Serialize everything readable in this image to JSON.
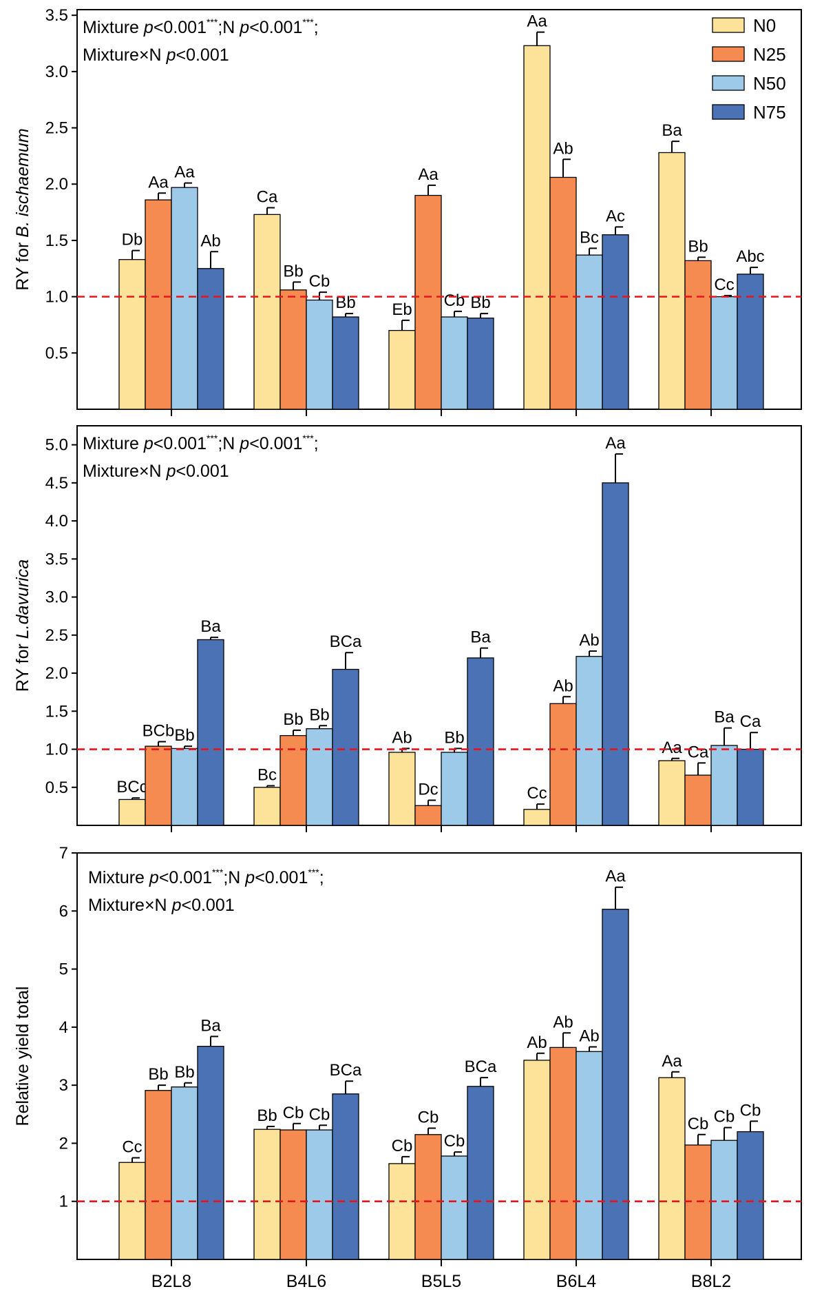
{
  "legend": [
    {
      "name": "N0",
      "color": "#fde39a"
    },
    {
      "name": "N25",
      "color": "#f58b51"
    },
    {
      "name": "N50",
      "color": "#9ecae9"
    },
    {
      "name": "N75",
      "color": "#4a72b4"
    }
  ],
  "chart_data": [
    {
      "type": "bar",
      "ylabel_prefix": "RY for ",
      "ylabel_species": "B. ischaemum",
      "stats": {
        "line1_mixture": "Mixture ",
        "line1_p": "p",
        "line1_val": "<0.001",
        "line1_sup": "***",
        "line1_sep": ";N ",
        "line1_p2": "p",
        "line1_val2": "<0.001",
        "line1_sup2": "***",
        "line1_end": ";",
        "line2_label": "Mixture×N  ",
        "line2_p": "p",
        "line2_val": "<0.001"
      },
      "categories": [
        "B2L8",
        "B4L6",
        "B5L5",
        "B6L4",
        "B8L2"
      ],
      "series": [
        {
          "name": "N0",
          "values": [
            1.33,
            1.73,
            0.7,
            3.23,
            2.28
          ],
          "errors": [
            0.08,
            0.06,
            0.09,
            0.12,
            0.1
          ],
          "letters": [
            "Db",
            "Ca",
            "Eb",
            "Aa",
            "Ba"
          ]
        },
        {
          "name": "N25",
          "values": [
            1.86,
            1.06,
            1.9,
            2.06,
            1.32
          ],
          "errors": [
            0.06,
            0.07,
            0.09,
            0.16,
            0.03
          ],
          "letters": [
            "Aa",
            "Bb",
            "Aa",
            "Ab",
            "Bb"
          ]
        },
        {
          "name": "N50",
          "values": [
            1.97,
            0.97,
            0.82,
            1.37,
            1.0
          ],
          "errors": [
            0.04,
            0.07,
            0.05,
            0.06,
            0.01
          ],
          "letters": [
            "Aa",
            "Cb",
            "Cb",
            "Bc",
            "Cc"
          ]
        },
        {
          "name": "N75",
          "values": [
            1.25,
            0.82,
            0.81,
            1.55,
            1.2
          ],
          "errors": [
            0.15,
            0.03,
            0.04,
            0.07,
            0.06
          ],
          "letters": [
            "Ab",
            "Bb",
            "Bb",
            "Ac",
            "Abc"
          ]
        }
      ],
      "reference_line": 1.0,
      "ylim": [
        0,
        3.55
      ],
      "yticks": [
        0.5,
        1.0,
        1.5,
        2.0,
        2.5,
        3.0,
        3.5
      ],
      "ytick_labels": [
        "0.5",
        "1.0",
        "1.5",
        "2.0",
        "2.5",
        "3.0",
        "3.5"
      ]
    },
    {
      "type": "bar",
      "ylabel_prefix": "RY for ",
      "ylabel_species": "L.davurica",
      "stats": {
        "line1_mixture": "Mixture ",
        "line1_p": "p",
        "line1_val": "<0.001",
        "line1_sup": "***",
        "line1_sep": ";N ",
        "line1_p2": "p",
        "line1_val2": "<0.001",
        "line1_sup2": "***",
        "line1_end": ";",
        "line2_label": "Mixture×N  ",
        "line2_p": "p",
        "line2_val": "<0.001"
      },
      "categories": [
        "B2L8",
        "B4L6",
        "B5L5",
        "B6L4",
        "B8L2"
      ],
      "series": [
        {
          "name": "N0",
          "values": [
            0.34,
            0.5,
            0.96,
            0.21,
            0.85
          ],
          "errors": [
            0.02,
            0.02,
            0.05,
            0.07,
            0.03
          ],
          "letters": [
            "BCc",
            "Bc",
            "Ab",
            "Cc",
            "Aa"
          ]
        },
        {
          "name": "N25",
          "values": [
            1.04,
            1.18,
            0.26,
            1.6,
            0.66
          ],
          "errors": [
            0.06,
            0.07,
            0.07,
            0.09,
            0.16
          ],
          "letters": [
            "BCb",
            "Bb",
            "Dc",
            "Ab",
            "Ca"
          ]
        },
        {
          "name": "N50",
          "values": [
            1.01,
            1.27,
            0.96,
            2.22,
            1.05
          ],
          "errors": [
            0.03,
            0.04,
            0.05,
            0.07,
            0.23
          ],
          "letters": [
            "Bb",
            "Bb",
            "Bb",
            "Ab",
            "Ba"
          ]
        },
        {
          "name": "N75",
          "values": [
            2.44,
            2.05,
            2.2,
            4.5,
            1.0
          ],
          "errors": [
            0.03,
            0.22,
            0.13,
            0.38,
            0.22
          ],
          "letters": [
            "Ba",
            "BCa",
            "Ba",
            "Aa",
            "Ca"
          ]
        }
      ],
      "reference_line": 1.0,
      "ylim": [
        0,
        5.25
      ],
      "yticks": [
        0.5,
        1.0,
        1.5,
        2.0,
        2.5,
        3.0,
        3.5,
        4.0,
        4.5,
        5.0
      ],
      "ytick_labels": [
        "0.5",
        "1.0",
        "1.5",
        "2.0",
        "2.5",
        "3.0",
        "3.5",
        "4.0",
        "4.5",
        "5.0"
      ]
    },
    {
      "type": "bar",
      "ylabel_prefix": "Relative yield total",
      "ylabel_species": "",
      "stats": {
        "line1_mixture": "Mixture ",
        "line1_p": "p",
        "line1_val": "<0.001",
        "line1_sup": "***",
        "line1_sep": ";N ",
        "line1_p2": "p",
        "line1_val2": "<0.001",
        "line1_sup2": "***",
        "line1_end": ";",
        "line2_label": "Mixture×N  ",
        "line2_p": "p",
        "line2_val": "<0.001"
      },
      "categories": [
        "B2L8",
        "B4L6",
        "B5L5",
        "B6L4",
        "B8L2"
      ],
      "series": [
        {
          "name": "N0",
          "values": [
            1.67,
            2.24,
            1.65,
            3.43,
            3.13
          ],
          "errors": [
            0.08,
            0.05,
            0.12,
            0.12,
            0.1
          ],
          "letters": [
            "Cc",
            "Bb",
            "Cb",
            "Ab",
            "Aa"
          ]
        },
        {
          "name": "N25",
          "values": [
            2.91,
            2.23,
            2.15,
            3.65,
            1.97
          ],
          "errors": [
            0.09,
            0.11,
            0.11,
            0.25,
            0.18
          ],
          "letters": [
            "Bb",
            "Cb",
            "Cb",
            "Ab",
            "Cb"
          ]
        },
        {
          "name": "N50",
          "values": [
            2.97,
            2.23,
            1.78,
            3.58,
            2.05
          ],
          "errors": [
            0.07,
            0.08,
            0.07,
            0.08,
            0.22
          ],
          "letters": [
            "Bb",
            "Cb",
            "Cb",
            "Ab",
            "Cb"
          ]
        },
        {
          "name": "N75",
          "values": [
            3.67,
            2.85,
            2.98,
            6.03,
            2.2
          ],
          "errors": [
            0.17,
            0.22,
            0.15,
            0.38,
            0.18
          ],
          "letters": [
            "Ba",
            "BCa",
            "BCa",
            "Aa",
            "Cb"
          ]
        }
      ],
      "reference_line": 1.0,
      "ylim": [
        0,
        7
      ],
      "yticks": [
        1,
        2,
        3,
        4,
        5,
        6,
        7
      ],
      "ytick_labels": [
        "1",
        "2",
        "3",
        "4",
        "5",
        "6",
        "7"
      ]
    }
  ]
}
